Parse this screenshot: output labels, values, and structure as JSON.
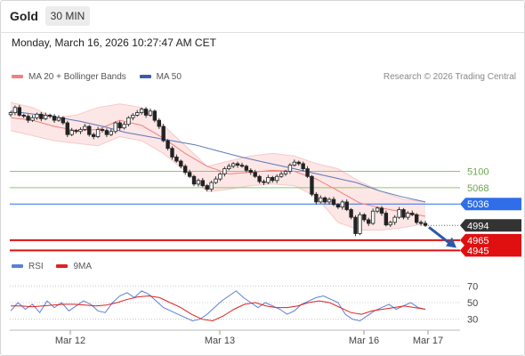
{
  "header": {
    "instrument": "Gold",
    "timeframe": "30 MIN",
    "timestamp": "Monday, March 16, 2026 10:27:47 AM CET"
  },
  "legends": {
    "price": [
      {
        "label": "MA 20 + Bollinger Bands",
        "color": "#f08080"
      },
      {
        "label": "MA 50",
        "color": "#3a5ea8"
      }
    ],
    "indicator": [
      {
        "label": "RSI",
        "color": "#5b7fd6"
      },
      {
        "label": "9MA",
        "color": "#e02020"
      }
    ]
  },
  "copyright": "Research © 2026 Trading Central",
  "chart_data": [
    {
      "type": "candlestick",
      "panel": "price",
      "x_ticks": [
        "Mar 12",
        "Mar 13",
        "Mar 16",
        "Mar 17"
      ],
      "ylim": [
        4930,
        5270
      ],
      "levels": [
        {
          "value": 5100,
          "label": "5100",
          "kind": "resistance",
          "color": "#8cc76b",
          "label_style": "text"
        },
        {
          "value": 5068,
          "label": "5068",
          "kind": "resistance",
          "color": "#8cc76b",
          "label_style": "text"
        },
        {
          "value": 5036,
          "label": "5036",
          "kind": "pivot",
          "color": "#2f6ee8",
          "label_style": "box"
        },
        {
          "value": 4994,
          "label": "4994",
          "kind": "last",
          "color": "#333333",
          "label_style": "box"
        },
        {
          "value": 4965,
          "label": "4965",
          "kind": "support",
          "color": "#e01010",
          "label_style": "box"
        },
        {
          "value": 4945,
          "label": "4945",
          "kind": "support",
          "color": "#e01010",
          "label_style": "box"
        }
      ],
      "series": [
        {
          "name": "Price",
          "values": [
            5215,
            5225,
            5210,
            5208,
            5200,
            5205,
            5212,
            5203,
            5210,
            5208,
            5200,
            5205,
            5195,
            5172,
            5180,
            5178,
            5182,
            5188,
            5172,
            5168,
            5182,
            5180,
            5172,
            5178,
            5195,
            5185,
            5192,
            5205,
            5210,
            5215,
            5222,
            5210,
            5218,
            5200,
            5188,
            5160,
            5145,
            5128,
            5120,
            5110,
            5098,
            5090,
            5075,
            5082,
            5072,
            5065,
            5078,
            5085,
            5095,
            5105,
            5110,
            5115,
            5112,
            5110,
            5102,
            5098,
            5090,
            5080,
            5078,
            5088,
            5082,
            5090,
            5095,
            5100,
            5112,
            5118,
            5115,
            5105,
            5090,
            5055,
            5040,
            5048,
            5040,
            5045,
            5035,
            5030,
            5040,
            5025,
            5010,
            4978,
            5015,
            5005,
            4998,
            5022,
            5028,
            5018,
            4995,
            5000,
            5010,
            5025,
            5010,
            5018,
            5015,
            5000,
            4998,
            4994
          ]
        },
        {
          "name": "MA 50",
          "values": [
            5218,
            5212,
            5206,
            5198,
            5188,
            5176,
            5168,
            5160,
            5152,
            5140,
            5128,
            5118,
            5108,
            5098,
            5088,
            5078,
            5062,
            5050,
            5040
          ]
        },
        {
          "name": "MA 20",
          "values": [
            5205,
            5200,
            5188,
            5180,
            5182,
            5200,
            5190,
            5165,
            5135,
            5110,
            5095,
            5098,
            5102,
            5100,
            5085,
            5062,
            5038,
            5028,
            5020,
            5012
          ]
        },
        {
          "name": "Bollinger Upper",
          "values": [
            5235,
            5225,
            5205,
            5210,
            5225,
            5232,
            5225,
            5190,
            5150,
            5110,
            5120,
            5130,
            5135,
            5130,
            5115,
            5105,
            5080,
            5060,
            5045,
            5040
          ]
        },
        {
          "name": "Bollinger Lower",
          "values": [
            5180,
            5170,
            5160,
            5155,
            5150,
            5168,
            5160,
            5135,
            5100,
            5060,
            5065,
            5072,
            5075,
            5072,
            5050,
            5000,
            4985,
            4985,
            4990,
            4998
          ]
        }
      ]
    },
    {
      "type": "line",
      "panel": "indicator",
      "x_ticks": [
        "Mar 12",
        "Mar 13",
        "Mar 16",
        "Mar 17"
      ],
      "ylim": [
        20,
        80
      ],
      "y_ticks": [
        30,
        50,
        70
      ],
      "series": [
        {
          "name": "RSI",
          "values": [
            40,
            50,
            42,
            48,
            38,
            52,
            44,
            50,
            40,
            46,
            52,
            48,
            40,
            38,
            50,
            58,
            62,
            56,
            64,
            60,
            52,
            44,
            40,
            36,
            32,
            28,
            30,
            36,
            44,
            52,
            58,
            64,
            56,
            50,
            44,
            50,
            46,
            42,
            36,
            40,
            48,
            52,
            56,
            58,
            54,
            50,
            36,
            30,
            28,
            34,
            40,
            44,
            48,
            42,
            46,
            50,
            44,
            42
          ]
        },
        {
          "name": "9MA",
          "values": [
            46,
            46,
            45,
            46,
            47,
            48,
            48,
            47,
            46,
            47,
            50,
            54,
            57,
            58,
            56,
            50,
            44,
            36,
            30,
            28,
            34,
            42,
            48,
            50,
            46,
            44,
            44,
            46,
            50,
            52,
            50,
            44,
            38,
            36,
            40,
            42,
            44,
            46,
            44,
            42
          ]
        }
      ]
    }
  ]
}
